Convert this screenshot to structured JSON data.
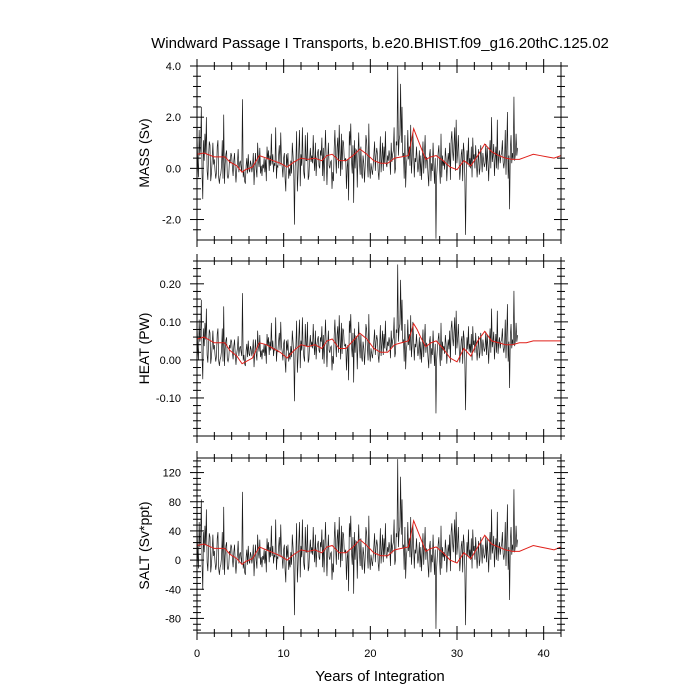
{
  "title": "Windward Passage I Transports, b.e20.BHIST.f09_g16.20thC.125.02",
  "xlabel": "Years of Integration",
  "colors": {
    "raw": "#1a1a1a",
    "smooth": "#e0201a",
    "frame": "#000000"
  },
  "chart_data": [
    {
      "type": "line",
      "ylabel": "MASS (Sv)",
      "xlim": [
        0,
        42
      ],
      "ylim": [
        -2.8,
        4.0
      ],
      "x_ticks": [
        0,
        10,
        20,
        30,
        40
      ],
      "y_ticks": [
        -2.0,
        0.0,
        2.0,
        4.0
      ],
      "y_tick_labels": [
        "-2.0",
        "0.0",
        "2.0",
        "4.0"
      ],
      "grid": false,
      "series": [
        {
          "style": "monthly-black",
          "x_step": 0.0833,
          "values": [
            1.35,
            0.2,
            -0.35,
            1.5,
            0.5,
            0.85,
            2.4,
            -0.2,
            -1.2,
            1.1,
            0.3,
            1.35,
            0.6,
            2.0,
            -0.1,
            -0.45,
            0.4,
            1.05,
            0.9,
            -0.5,
            -0.2,
            0.3,
            1.0,
            0.15,
            0.35,
            -0.1,
            -0.4,
            -0.15,
            0.85,
            1.1,
            -0.35,
            -0.6,
            -0.3,
            -0.2,
            0.1,
            1.1,
            -0.4,
            2.1,
            -0.6,
            0.15,
            0.55,
            0.7,
            -0.3,
            -0.4,
            -0.25,
            0.35,
            0.2,
            0.6,
            0.5,
            0.05,
            -0.3,
            0.3,
            0.6,
            -0.1,
            -0.55,
            -0.05,
            0.2,
            0.75,
            -0.15,
            0.2,
            0.3,
            0.05,
            -0.15,
            2.7,
            -0.35,
            -0.1,
            -0.5,
            -0.6,
            0.1,
            0.4,
            -0.2,
            0.55,
            -0.05,
            -0.15,
            0.3,
            0.15,
            -0.15,
            0.1,
            0.6,
            -0.65,
            0.0,
            0.6,
            -0.05,
            -0.35,
            1.0,
            0.3,
            0.05,
            0.8,
            -0.2,
            0.1,
            -0.3,
            0.15,
            0.0,
            0.4,
            -0.15,
            0.35,
            -0.5,
            0.85,
            0.35,
            0.7,
            -0.1,
            0.5,
            0.1,
            1.35,
            0.15,
            0.55,
            -0.15,
            0.2,
            0.1,
            1.6,
            -0.4,
            0.1,
            0.05,
            0.5,
            0.9,
            0.1,
            1.4,
            0.3,
            0.05,
            -0.35,
            0.4,
            0.6,
            -0.4,
            -0.9,
            0.55,
            0.1,
            0.6,
            -0.4,
            0.0,
            -0.3,
            0.3,
            -0.2,
            1.0,
            0.5,
            -0.1,
            -2.2,
            0.1,
            0.3,
            1.45,
            -0.9,
            -0.2,
            0.7,
            1.5,
            -0.7,
            0.55,
            0.1,
            1.6,
            0.2,
            -0.2,
            -0.4,
            1.3,
            0.3,
            0.3,
            1.4,
            -0.45,
            -0.3,
            0.35,
            0.8,
            0.25,
            0.5,
            0.2,
            1.3,
            0.35,
            -0.1,
            1.0,
            -0.3,
            0.35,
            0.6,
            0.75,
            0.1,
            0.0,
            0.7,
            0.5,
            1.2,
            -0.3,
            0.8,
            -0.5,
            0.5,
            1.5,
            0.35,
            -0.65,
            0.3,
            1.0,
            0.1,
            0.0,
            0.25,
            0.3,
            -0.8,
            -0.15,
            -0.5,
            0.75,
            1.5,
            0.5,
            -0.2,
            0.8,
            1.2,
            0.0,
            1.7,
            0.6,
            -0.3,
            1.35,
            -0.05,
            1.1,
            1.0,
            0.35,
            0.3,
            0.4,
            -0.8,
            0.05,
            0.35,
            -1.25,
            1.45,
            0.9,
            1.75,
            0.3,
            -0.2,
            0.9,
            -1.35,
            1.1,
            0.0,
            0.75,
            0.7,
            -0.75,
            0.5,
            1.4,
            0.25,
            -0.25,
            0.85,
            -0.2,
            -0.4,
            0.5,
            0.2,
            -0.55,
            0.1,
            1.3,
            1.05,
            0.25,
            -0.35,
            1.75,
            0.0,
            -0.4,
            0.2,
            -0.05,
            -0.25,
            0.1,
            0.55,
            1.05,
            -0.1,
            0.5,
            0.8,
            0.55,
            -0.15,
            -0.45,
            0.3,
            1.25,
            -0.15,
            0.4,
            1.0,
            -0.1,
            0.85,
            0.2,
            1.45,
            0.2,
            0.05,
            0.5,
            0.3,
            0.7,
            0.45,
            -0.25,
            1.0,
            0.25,
            0.55,
            0.7,
            1.6,
            -0.2,
            0.0,
            1.05,
            0.9,
            4.0,
            0.5,
            1.1,
            1.3,
            3.3,
            1.0,
            2.4,
            0.45,
            0.6,
            -0.4,
            1.3,
            -0.75,
            0.15,
            0.4,
            1.5,
            0.35,
            0.85,
            0.1,
            1.7,
            -0.2,
            0.35,
            1.4,
            0.6,
            -0.35,
            0.4,
            0.25,
            0.85,
            0.3,
            -0.15,
            0.1,
            0.7,
            -0.3,
            0.5,
            -0.45,
            0.3,
            1.05,
            -0.2,
            0.55,
            1.3,
            0.0,
            0.45,
            0.3,
            -0.25,
            -0.7,
            0.5,
            0.75,
            -0.5,
            0.2,
            -0.1,
            1.0,
            0.15,
            -0.6,
            0.4,
            -2.75,
            -0.3,
            0.2,
            0.6,
            0.9,
            0.0,
            -0.6,
            1.35,
            -0.35,
            0.5,
            0.1,
            0.3,
            -0.05,
            0.8,
            0.4,
            -0.5,
            0.2,
            0.6,
            0.15,
            1.0,
            -0.45,
            1.1,
            1.45,
            0.7,
            0.3,
            0.95,
            1.6,
            -0.1,
            1.9,
            0.2,
            0.6,
            1.3,
            0.35,
            -0.45,
            0.0,
            0.55,
            0.75,
            -0.5,
            1.0,
            0.65,
            -0.4,
            -2.6,
            -0.2,
            0.7,
            0.15,
            1.2,
            0.05,
            0.4,
            0.0,
            0.85,
            -0.35,
            1.2,
            0.35,
            0.55,
            0.0,
            0.9,
            0.25,
            -0.35,
            0.2,
            0.75,
            -0.25,
            0.0,
            0.9,
            0.4,
            -0.15,
            0.6,
            0.3,
            0.05,
            0.2,
            0.95,
            -0.1,
            0.8,
            0.25,
            -0.5,
            0.45,
            1.1,
            0.0,
            2.0,
            0.25,
            0.5,
            0.95,
            -0.3,
            0.35,
            0.85,
            0.0,
            1.9,
            -0.05,
            0.45,
            0.7,
            0.2,
            0.5,
            0.6,
            1.1,
            0.25,
            0.0,
            0.3,
            1.5,
            -0.25,
            0.75,
            2.2,
            -0.4,
            0.5,
            -1.6,
            0.7,
            1.3,
            0.2,
            0.6,
            0.35,
            2.8,
            0.3,
            0.55,
            1.35,
            0.5,
            0.8
          ]
        },
        {
          "style": "smoothed-red",
          "x": [
            0,
            0.8,
            2,
            3.2,
            3.8,
            4.6,
            5.2,
            5.6,
            6.4,
            7.2,
            8,
            8.8,
            9.6,
            10.4,
            11.2,
            12,
            12.8,
            13.6,
            14.4,
            15,
            15.6,
            16.4,
            17.2,
            18,
            18.8,
            19.6,
            20.4,
            21.2,
            22,
            22.8,
            23.6,
            24.4,
            25,
            25.4,
            25.8,
            26.4,
            27,
            27.6,
            28.4,
            29.2,
            30,
            30.8,
            31.6,
            32.4,
            33.2,
            34,
            34.8,
            35.6,
            36.4,
            37.2,
            38,
            38.8,
            39.6,
            40.4,
            41.2,
            42
          ],
          "values": [
            0.55,
            0.6,
            0.45,
            0.45,
            0.25,
            0.1,
            -0.15,
            -0.05,
            0.05,
            0.5,
            0.4,
            0.3,
            0.2,
            0.05,
            0.25,
            0.4,
            0.35,
            0.4,
            0.3,
            0.5,
            0.55,
            0.3,
            0.3,
            0.5,
            0.75,
            0.55,
            0.3,
            0.2,
            0.2,
            0.4,
            0.45,
            0.5,
            1.55,
            1.2,
            0.85,
            0.35,
            0.45,
            0.5,
            0.3,
            0.05,
            -0.05,
            0.3,
            0.1,
            0.5,
            0.95,
            0.65,
            0.5,
            0.4,
            0.35,
            0.35,
            0.45,
            0.55,
            0.5,
            0.45,
            0.4,
            0.5
          ]
        }
      ]
    },
    {
      "type": "line",
      "ylabel": "HEAT (PW)",
      "xlim": [
        0,
        42
      ],
      "ylim": [
        -0.2,
        0.26
      ],
      "x_ticks": [
        0,
        10,
        20,
        30,
        40
      ],
      "y_ticks": [
        -0.1,
        0.0,
        0.1,
        0.2
      ],
      "y_tick_labels": [
        "-0.10",
        "0.00",
        "0.10",
        "0.20"
      ],
      "grid": false,
      "series": [
        {
          "style": "monthly-black",
          "x_step": 0.0833,
          "scale_from": 0,
          "scale": 0.058
        },
        {
          "style": "smoothed-red",
          "x": [
            0,
            0.8,
            2,
            3.2,
            3.8,
            4.6,
            5.2,
            5.6,
            6.4,
            7.2,
            8,
            8.8,
            9.6,
            10.4,
            11.2,
            12,
            12.8,
            13.6,
            14.4,
            15,
            15.6,
            16.4,
            17.2,
            18,
            18.8,
            19.6,
            20.4,
            21.2,
            22,
            22.8,
            23.6,
            24.4,
            25,
            25.4,
            25.8,
            26.4,
            27,
            27.6,
            28.4,
            29.2,
            30,
            30.8,
            31.6,
            32.4,
            33.2,
            34,
            34.8,
            35.6,
            36.4,
            37.2,
            38,
            38.8,
            39.6,
            40.4,
            41.2,
            42
          ],
          "values": [
            0.055,
            0.06,
            0.045,
            0.045,
            0.025,
            0.01,
            -0.01,
            -0.005,
            0.005,
            0.045,
            0.04,
            0.03,
            0.02,
            0.005,
            0.025,
            0.04,
            0.035,
            0.04,
            0.03,
            0.05,
            0.055,
            0.03,
            0.03,
            0.05,
            0.07,
            0.055,
            0.03,
            0.02,
            0.02,
            0.04,
            0.045,
            0.05,
            0.095,
            0.08,
            0.06,
            0.035,
            0.045,
            0.05,
            0.03,
            0.005,
            -0.005,
            0.03,
            0.01,
            0.05,
            0.075,
            0.05,
            0.045,
            0.04,
            0.04,
            0.045,
            0.045,
            0.05,
            0.05,
            0.05,
            0.05,
            0.05
          ]
        }
      ]
    },
    {
      "type": "line",
      "ylabel": "SALT (Sv*ppt)",
      "xlim": [
        0,
        42
      ],
      "ylim": [
        -100,
        140
      ],
      "x_ticks": [
        0,
        10,
        20,
        30,
        40
      ],
      "x_tick_labels": [
        "0",
        "10",
        "20",
        "30",
        "40"
      ],
      "y_ticks": [
        -80,
        -40,
        0,
        40,
        80,
        120
      ],
      "y_tick_labels": [
        "-80",
        "-40",
        "0",
        "40",
        "80",
        "120"
      ],
      "grid": false,
      "series": [
        {
          "style": "monthly-black",
          "x_step": 0.0833,
          "scale_from": 0,
          "scale": 34.5
        },
        {
          "style": "smoothed-red",
          "x": [
            0,
            0.8,
            2,
            3.2,
            3.8,
            4.6,
            5.2,
            5.6,
            6.4,
            7.2,
            8,
            8.8,
            9.6,
            10.4,
            11.2,
            12,
            12.8,
            13.6,
            14.4,
            15,
            15.6,
            16.4,
            17.2,
            18,
            18.8,
            19.6,
            20.4,
            21.2,
            22,
            22.8,
            23.6,
            24.4,
            25,
            25.4,
            25.8,
            26.4,
            27,
            27.6,
            28.4,
            29.2,
            30,
            30.8,
            31.6,
            32.4,
            33.2,
            34,
            34.8,
            35.6,
            36.4,
            37.2,
            38,
            38.8,
            39.6,
            40.4,
            41.2,
            42
          ],
          "values": [
            20,
            22,
            16,
            16,
            8,
            2,
            -6,
            -2,
            2,
            18,
            14,
            10,
            6,
            0,
            8,
            14,
            12,
            14,
            10,
            18,
            20,
            10,
            10,
            18,
            28,
            20,
            10,
            6,
            6,
            14,
            16,
            18,
            54,
            42,
            30,
            12,
            16,
            18,
            10,
            0,
            -4,
            10,
            2,
            18,
            34,
            22,
            18,
            14,
            12,
            12,
            16,
            20,
            18,
            16,
            14,
            18
          ]
        }
      ]
    }
  ]
}
